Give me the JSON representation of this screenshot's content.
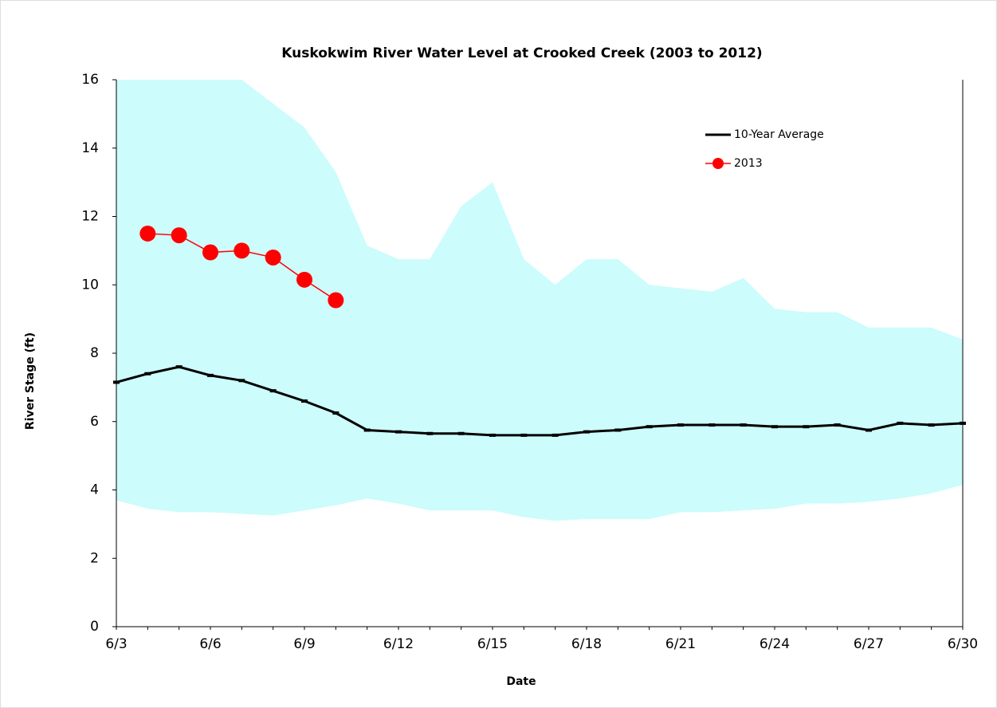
{
  "chart_data": {
    "type": "line",
    "title": "Kuskokwim River Water Level at Crooked Creek (2003 to 2012)",
    "x_label": "Date",
    "y_label": "River Stage (ft)",
    "categories": [
      "6/3",
      null,
      null,
      "6/6",
      null,
      null,
      "6/9",
      null,
      null,
      "6/12",
      null,
      null,
      "6/15",
      null,
      null,
      "6/18",
      null,
      null,
      "6/21",
      null,
      null,
      "6/24",
      null,
      null,
      "6/27",
      null,
      null,
      "6/30"
    ],
    "ylim": [
      0,
      16
    ],
    "yticks": [
      0,
      2,
      4,
      6,
      8,
      10,
      12,
      14,
      16
    ],
    "legend": "upper right",
    "band": {
      "color": "#ccfcfc",
      "upper": [
        16,
        16,
        16,
        16,
        16,
        15.3,
        14.6,
        13.3,
        11.15,
        10.75,
        10.75,
        12.3,
        13.0,
        10.75,
        10.0,
        10.75,
        10.75,
        10.0,
        9.9,
        9.8,
        10.2,
        9.3,
        9.2,
        9.2,
        8.75,
        8.75,
        8.75,
        8.4
      ],
      "lower": [
        3.7,
        3.45,
        3.35,
        3.35,
        3.3,
        3.25,
        3.4,
        3.55,
        3.75,
        3.6,
        3.4,
        3.4,
        3.4,
        3.2,
        3.1,
        3.15,
        3.15,
        3.15,
        3.35,
        3.35,
        3.4,
        3.45,
        3.6,
        3.6,
        3.65,
        3.75,
        3.9,
        4.15
      ]
    },
    "series": [
      {
        "name": "10-Year Average",
        "color": "#000000",
        "marker": "dash",
        "values": [
          7.15,
          7.4,
          7.6,
          7.35,
          7.2,
          6.9,
          6.6,
          6.25,
          5.75,
          5.7,
          5.65,
          5.65,
          5.6,
          5.6,
          5.6,
          5.7,
          5.75,
          5.85,
          5.9,
          5.9,
          5.9,
          5.85,
          5.85,
          5.9,
          5.75,
          5.95,
          5.9,
          5.95
        ]
      },
      {
        "name": "2013",
        "color": "#ff0000",
        "marker": "circle",
        "values": [
          null,
          11.5,
          11.45,
          10.95,
          11.0,
          10.8,
          10.15,
          9.55,
          null,
          null,
          null,
          null,
          null,
          null,
          null,
          null,
          null,
          null,
          null,
          null,
          null,
          null,
          null,
          null,
          null,
          null,
          null,
          null
        ]
      }
    ]
  }
}
